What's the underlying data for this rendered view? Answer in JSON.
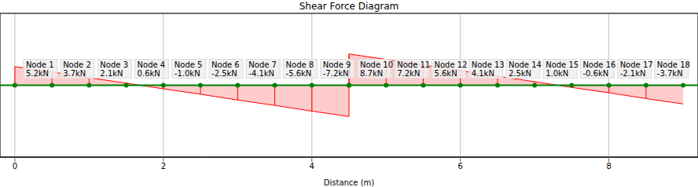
{
  "chart_data": {
    "type": "area",
    "title": "Shear Force Diagram",
    "x_label": "Distance (m)",
    "x": [
      0,
      0.5,
      1.0,
      1.5,
      2.0,
      2.5,
      3.0,
      3.5,
      4.0,
      4.5,
      4.5,
      5.0,
      5.5,
      6.0,
      6.5,
      7.0,
      7.5,
      8.0,
      8.5,
      9.0
    ],
    "series": [
      {
        "name": "Shear Force",
        "color": "red",
        "values": [
          5.2,
          3.7,
          2.1,
          0.6,
          -1.0,
          -2.5,
          -4.1,
          -5.6,
          -7.2,
          -8.7,
          8.7,
          7.2,
          5.6,
          4.1,
          2.5,
          1.0,
          -0.6,
          -2.1,
          -3.7,
          -5.2
        ]
      }
    ],
    "nodes": [
      {
        "label": "Node 1",
        "x": 0,
        "value": 5.2,
        "value_label": "5.2kN"
      },
      {
        "label": "Node 2",
        "x": 0.5,
        "value": 3.7,
        "value_label": "3.7kN"
      },
      {
        "label": "Node 3",
        "x": 1.0,
        "value": 2.1,
        "value_label": "2.1kN"
      },
      {
        "label": "Node 4",
        "x": 1.5,
        "value": 0.6,
        "value_label": "0.6kN"
      },
      {
        "label": "Node 5",
        "x": 2.0,
        "value": -1.0,
        "value_label": "-1.0kN"
      },
      {
        "label": "Node 6",
        "x": 2.5,
        "value": -2.5,
        "value_label": "-2.5kN"
      },
      {
        "label": "Node 7",
        "x": 3.0,
        "value": -4.1,
        "value_label": "-4.1kN"
      },
      {
        "label": "Node 8",
        "x": 3.5,
        "value": -5.6,
        "value_label": "-5.6kN"
      },
      {
        "label": "Node 9",
        "x": 4.0,
        "value": -7.2,
        "value_label": "-7.2kN"
      },
      {
        "label": "Node 10",
        "x": 4.5,
        "value": 8.7,
        "value_label": "8.7kN"
      },
      {
        "label": "Node 11",
        "x": 5.0,
        "value": 7.2,
        "value_label": "7.2kN"
      },
      {
        "label": "Node 12",
        "x": 5.5,
        "value": 5.6,
        "value_label": "5.6kN"
      },
      {
        "label": "Node 13",
        "x": 6.0,
        "value": 4.1,
        "value_label": "4.1kN"
      },
      {
        "label": "Node 14",
        "x": 6.5,
        "value": 2.5,
        "value_label": "2.5kN"
      },
      {
        "label": "Node 15",
        "x": 7.0,
        "value": 1.0,
        "value_label": "1.0kN"
      },
      {
        "label": "Node 16",
        "x": 7.5,
        "value": -0.6,
        "value_label": "-0.6kN"
      },
      {
        "label": "Node 17",
        "x": 8.0,
        "value": -2.1,
        "value_label": "-2.1kN"
      },
      {
        "label": "Node 18",
        "x": 8.5,
        "value": -3.7,
        "value_label": "-3.7kN"
      }
    ],
    "xlim": [
      -0.2,
      9.2
    ],
    "xticks": [
      0,
      2,
      4,
      6,
      8
    ],
    "ylim": [
      -20,
      20
    ],
    "yticks": [
      -20,
      -15,
      -10,
      -5,
      0,
      5,
      10,
      15,
      20
    ],
    "grid": true,
    "tick_labels": "x"
  }
}
